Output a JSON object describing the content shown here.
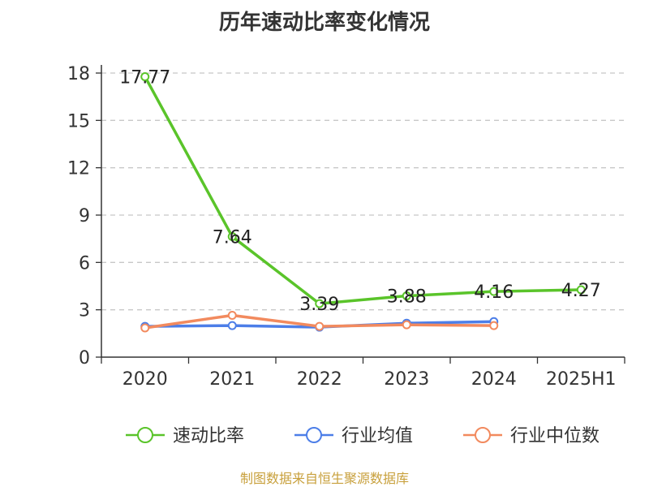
{
  "chart_data": {
    "type": "line",
    "title": "历年速动比率变化情况",
    "categories": [
      "2020",
      "2021",
      "2022",
      "2023",
      "2024",
      "2025H1"
    ],
    "ylim": [
      0,
      18
    ],
    "yticks": [
      0,
      3,
      6,
      9,
      12,
      15,
      18
    ],
    "grid": "horizontal-dashed",
    "legend_position": "bottom",
    "series": [
      {
        "name": "速动比率",
        "color": "#5ac42a",
        "values": [
          17.77,
          7.64,
          3.39,
          3.88,
          4.16,
          4.27
        ],
        "labels": [
          "17.77",
          "7.64",
          "3.39",
          "3.88",
          "4.16",
          "4.27"
        ]
      },
      {
        "name": "行业均值",
        "color": "#4c7ee8",
        "values": [
          1.95,
          2.0,
          1.9,
          2.15,
          2.25,
          null
        ]
      },
      {
        "name": "行业中位数",
        "color": "#f28a5e",
        "values": [
          1.85,
          2.65,
          1.95,
          2.05,
          2.0,
          null
        ]
      }
    ]
  },
  "source": "制图数据来自恒生聚源数据库",
  "colors": {
    "axis": "#333333",
    "grid": "#c8c8c8",
    "source": "#c8a03c"
  }
}
